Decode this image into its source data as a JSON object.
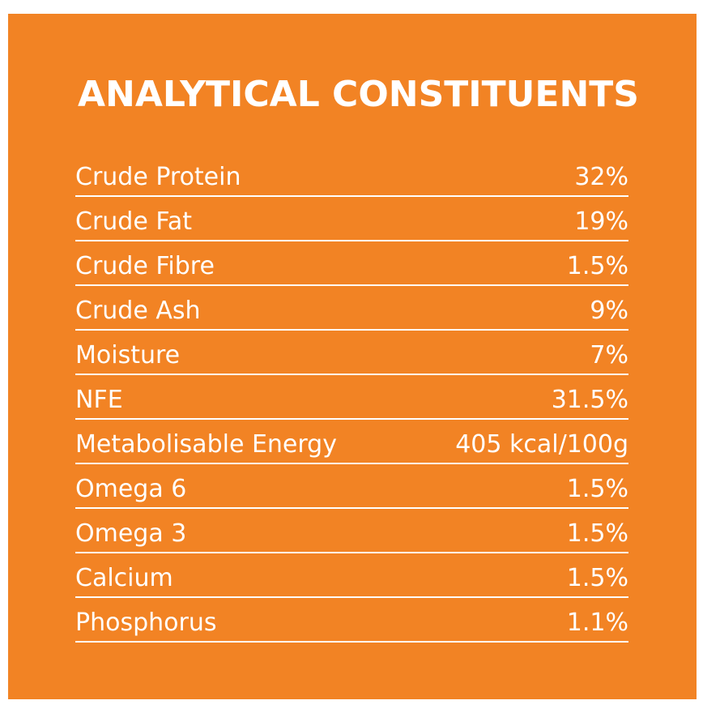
{
  "title": "ANALYTICAL CONSTITUENTS",
  "rows": [
    {
      "label": "Crude Protein",
      "value": "32%"
    },
    {
      "label": "Crude Fat",
      "value": "19%"
    },
    {
      "label": "Crude Fibre",
      "value": "1.5%"
    },
    {
      "label": "Crude Ash",
      "value": "9%"
    },
    {
      "label": "Moisture",
      "value": "7%"
    },
    {
      "label": "NFE",
      "value": "31.5%"
    },
    {
      "label": "Metabolisable Energy",
      "value": "405 kcal/100g"
    },
    {
      "label": "Omega 6",
      "value": "1.5%"
    },
    {
      "label": "Omega 3",
      "value": "1.5%"
    },
    {
      "label": "Calcium",
      "value": "1.5%"
    },
    {
      "label": "Phosphorus",
      "value": "1.1%"
    }
  ],
  "colors": {
    "background": "#f28324",
    "text": "#ffffff"
  }
}
